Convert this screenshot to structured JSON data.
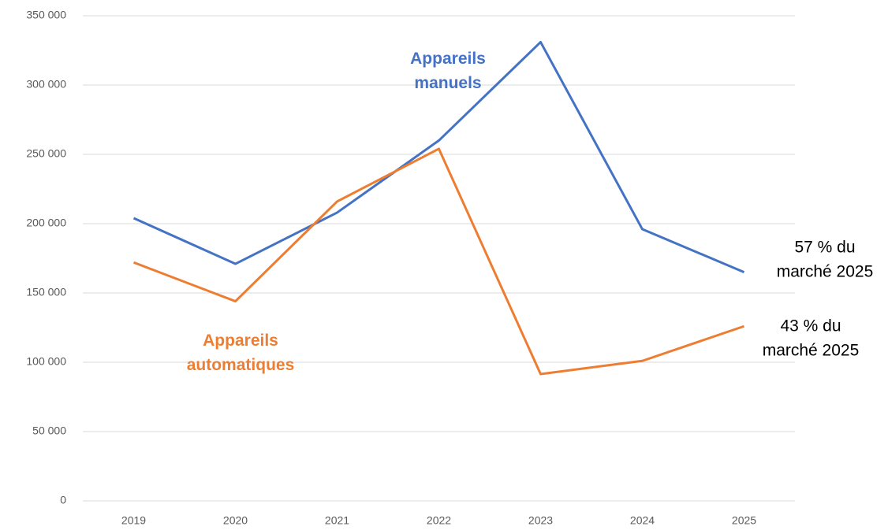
{
  "chart_data": {
    "type": "line",
    "categories": [
      "2019",
      "2020",
      "2021",
      "2022",
      "2023",
      "2024",
      "2025"
    ],
    "series": [
      {
        "name": "Appareils manuels",
        "color": "#4472c4",
        "values": [
          204000,
          171000,
          208000,
          260000,
          331000,
          196000,
          165000
        ]
      },
      {
        "name": "Appareils automatiques",
        "color": "#ed7d31",
        "values": [
          172000,
          144000,
          216000,
          254000,
          91500,
          101000,
          126000
        ]
      }
    ],
    "ylim": [
      0,
      350000
    ],
    "yticks": [
      {
        "value": 0,
        "label": "0"
      },
      {
        "value": 50000,
        "label": "50 000"
      },
      {
        "value": 100000,
        "label": "100 000"
      },
      {
        "value": 150000,
        "label": "150 000"
      },
      {
        "value": 200000,
        "label": "200 000"
      },
      {
        "value": 250000,
        "label": "250 000"
      },
      {
        "value": 300000,
        "label": "300 000"
      },
      {
        "value": 350000,
        "label": "350 000"
      }
    ],
    "grid": true,
    "annotations": [
      {
        "lines": [
          "57 % du",
          "marché 2025"
        ],
        "color": "#000000"
      },
      {
        "lines": [
          "43 % du",
          "marché 2025"
        ],
        "color": "#000000"
      }
    ]
  }
}
